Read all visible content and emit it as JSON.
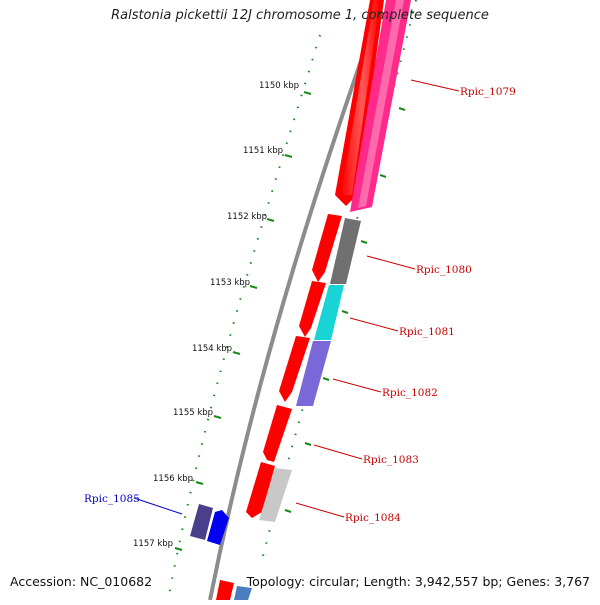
{
  "title": "Ralstonia pickettii 12J chromosome 1, complete sequence",
  "footer": {
    "accession": "Accession: NC_010682",
    "topology": "Topology: circular; Length: 3,942,557 bp; Genes: 3,767"
  },
  "colors": {
    "backbone": "#8c8c8c",
    "tick": "#1a8a1a",
    "label_red": "#cc0000",
    "label_blue": "#0000cc"
  },
  "ticks": [
    {
      "label": "1150 kbp",
      "kb": 1150
    },
    {
      "label": "1151 kbp",
      "kb": 1151
    },
    {
      "label": "1152 kbp",
      "kb": 1152
    },
    {
      "label": "1153 kbp",
      "kb": 1153
    },
    {
      "label": "1154 kbp",
      "kb": 1154
    },
    {
      "label": "1155 kbp",
      "kb": 1155
    },
    {
      "label": "1156 kbp",
      "kb": 1156
    },
    {
      "label": "1157 kbp",
      "kb": 1157
    }
  ],
  "genes": [
    {
      "name": "Rpic_1079",
      "color": "#ff2a8a"
    },
    {
      "name": "Rpic_1080",
      "color": "#707070"
    },
    {
      "name": "Rpic_1081",
      "color": "#18d4d4"
    },
    {
      "name": "Rpic_1082",
      "color": "#7a68d8"
    },
    {
      "name": "Rpic_1083",
      "color": ""
    },
    {
      "name": "Rpic_1084",
      "color": "#c8c8c8"
    },
    {
      "name": "Rpic_1085",
      "color": "#4a3f8a"
    }
  ]
}
